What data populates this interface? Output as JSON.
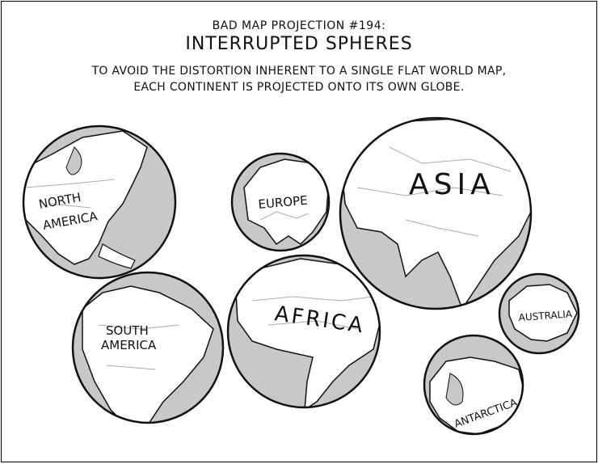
{
  "header": {
    "kicker": "BAD MAP PROJECTION #194:",
    "title": "INTERRUPTED SPHERES",
    "subtitle_line1": "TO AVOID THE DISTORTION INHERENT TO A SINGLE FLAT WORLD MAP,",
    "subtitle_line2": "EACH CONTINENT IS PROJECTED ONTO ITS OWN GLOBE."
  },
  "globes": {
    "north_america": {
      "line1": "NORTH",
      "line2": "AMERICA"
    },
    "europe": {
      "label": "EUROPE"
    },
    "asia": {
      "label": "ASIA"
    },
    "south_america": {
      "line1": "SOUTH",
      "line2": "AMERICA"
    },
    "africa": {
      "label": "AFRICA"
    },
    "australia": {
      "label": "AUSTRALIA"
    },
    "antarctica": {
      "label": "ANTARCTICA"
    }
  },
  "colors": {
    "ocean": "#c8c8c8",
    "land": "#ffffff",
    "ink": "#111111"
  }
}
